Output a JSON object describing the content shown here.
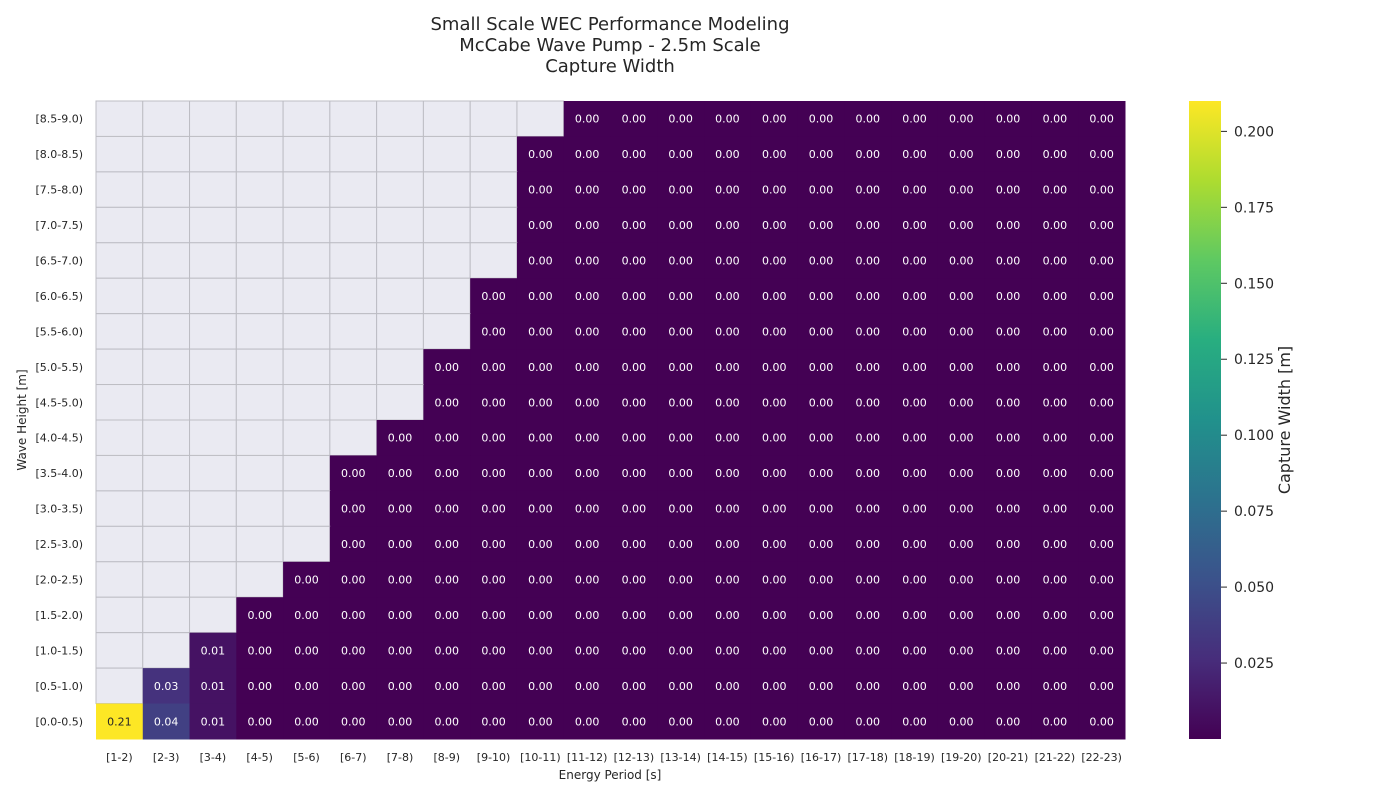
{
  "chart_data": {
    "type": "heatmap",
    "title_lines": [
      "Small Scale WEC Performance Modeling",
      "McCabe Wave Pump - 2.5m Scale",
      "Capture Width"
    ],
    "xlabel": "Energy Period [s]",
    "ylabel": "Wave Height [m]",
    "x_categories": [
      "[1-2)",
      "[2-3)",
      "[3-4)",
      "[4-5)",
      "[5-6)",
      "[6-7)",
      "[7-8)",
      "[8-9)",
      "[9-10)",
      "[10-11)",
      "[11-12)",
      "[12-13)",
      "[13-14)",
      "[14-15)",
      "[15-16)",
      "[16-17)",
      "[17-18)",
      "[18-19)",
      "[19-20)",
      "[20-21)",
      "[21-22)",
      "[22-23)"
    ],
    "y_categories": [
      "[8.5-9.0)",
      "[8.0-8.5)",
      "[7.5-8.0)",
      "[7.0-7.5)",
      "[6.5-7.0)",
      "[6.0-6.5)",
      "[5.5-6.0)",
      "[5.0-5.5)",
      "[4.5-5.0)",
      "[4.0-4.5)",
      "[3.5-4.0)",
      "[3.0-3.5)",
      "[2.5-3.0)",
      "[2.0-2.5)",
      "[1.5-2.0)",
      "[1.0-1.5)",
      "[0.5-1.0)",
      "[0.0-0.5)"
    ],
    "first_valid_column_index": [
      10,
      9,
      9,
      9,
      9,
      8,
      8,
      7,
      7,
      6,
      5,
      5,
      5,
      4,
      3,
      2,
      1,
      0
    ],
    "special_values": [
      {
        "row": "[1.0-1.5)",
        "col": "[3-4)",
        "value": 0.01
      },
      {
        "row": "[0.5-1.0)",
        "col": "[2-3)",
        "value": 0.03
      },
      {
        "row": "[0.5-1.0)",
        "col": "[3-4)",
        "value": 0.01
      },
      {
        "row": "[0.0-0.5)",
        "col": "[1-2)",
        "value": 0.21
      },
      {
        "row": "[0.0-0.5)",
        "col": "[2-3)",
        "value": 0.04
      },
      {
        "row": "[0.0-0.5)",
        "col": "[3-4)",
        "value": 0.01
      }
    ],
    "default_value": 0.0,
    "colormap": "viridis",
    "missing_color": "#eaeaf2",
    "colorbar": {
      "label": "Capture Width [m]",
      "range": [
        0.0,
        0.21
      ],
      "ticks": [
        0.025,
        0.05,
        0.075,
        0.1,
        0.125,
        0.15,
        0.175,
        0.2
      ],
      "tick_labels": [
        "0.025",
        "0.050",
        "0.075",
        "0.100",
        "0.125",
        "0.150",
        "0.175",
        "0.200"
      ]
    }
  }
}
